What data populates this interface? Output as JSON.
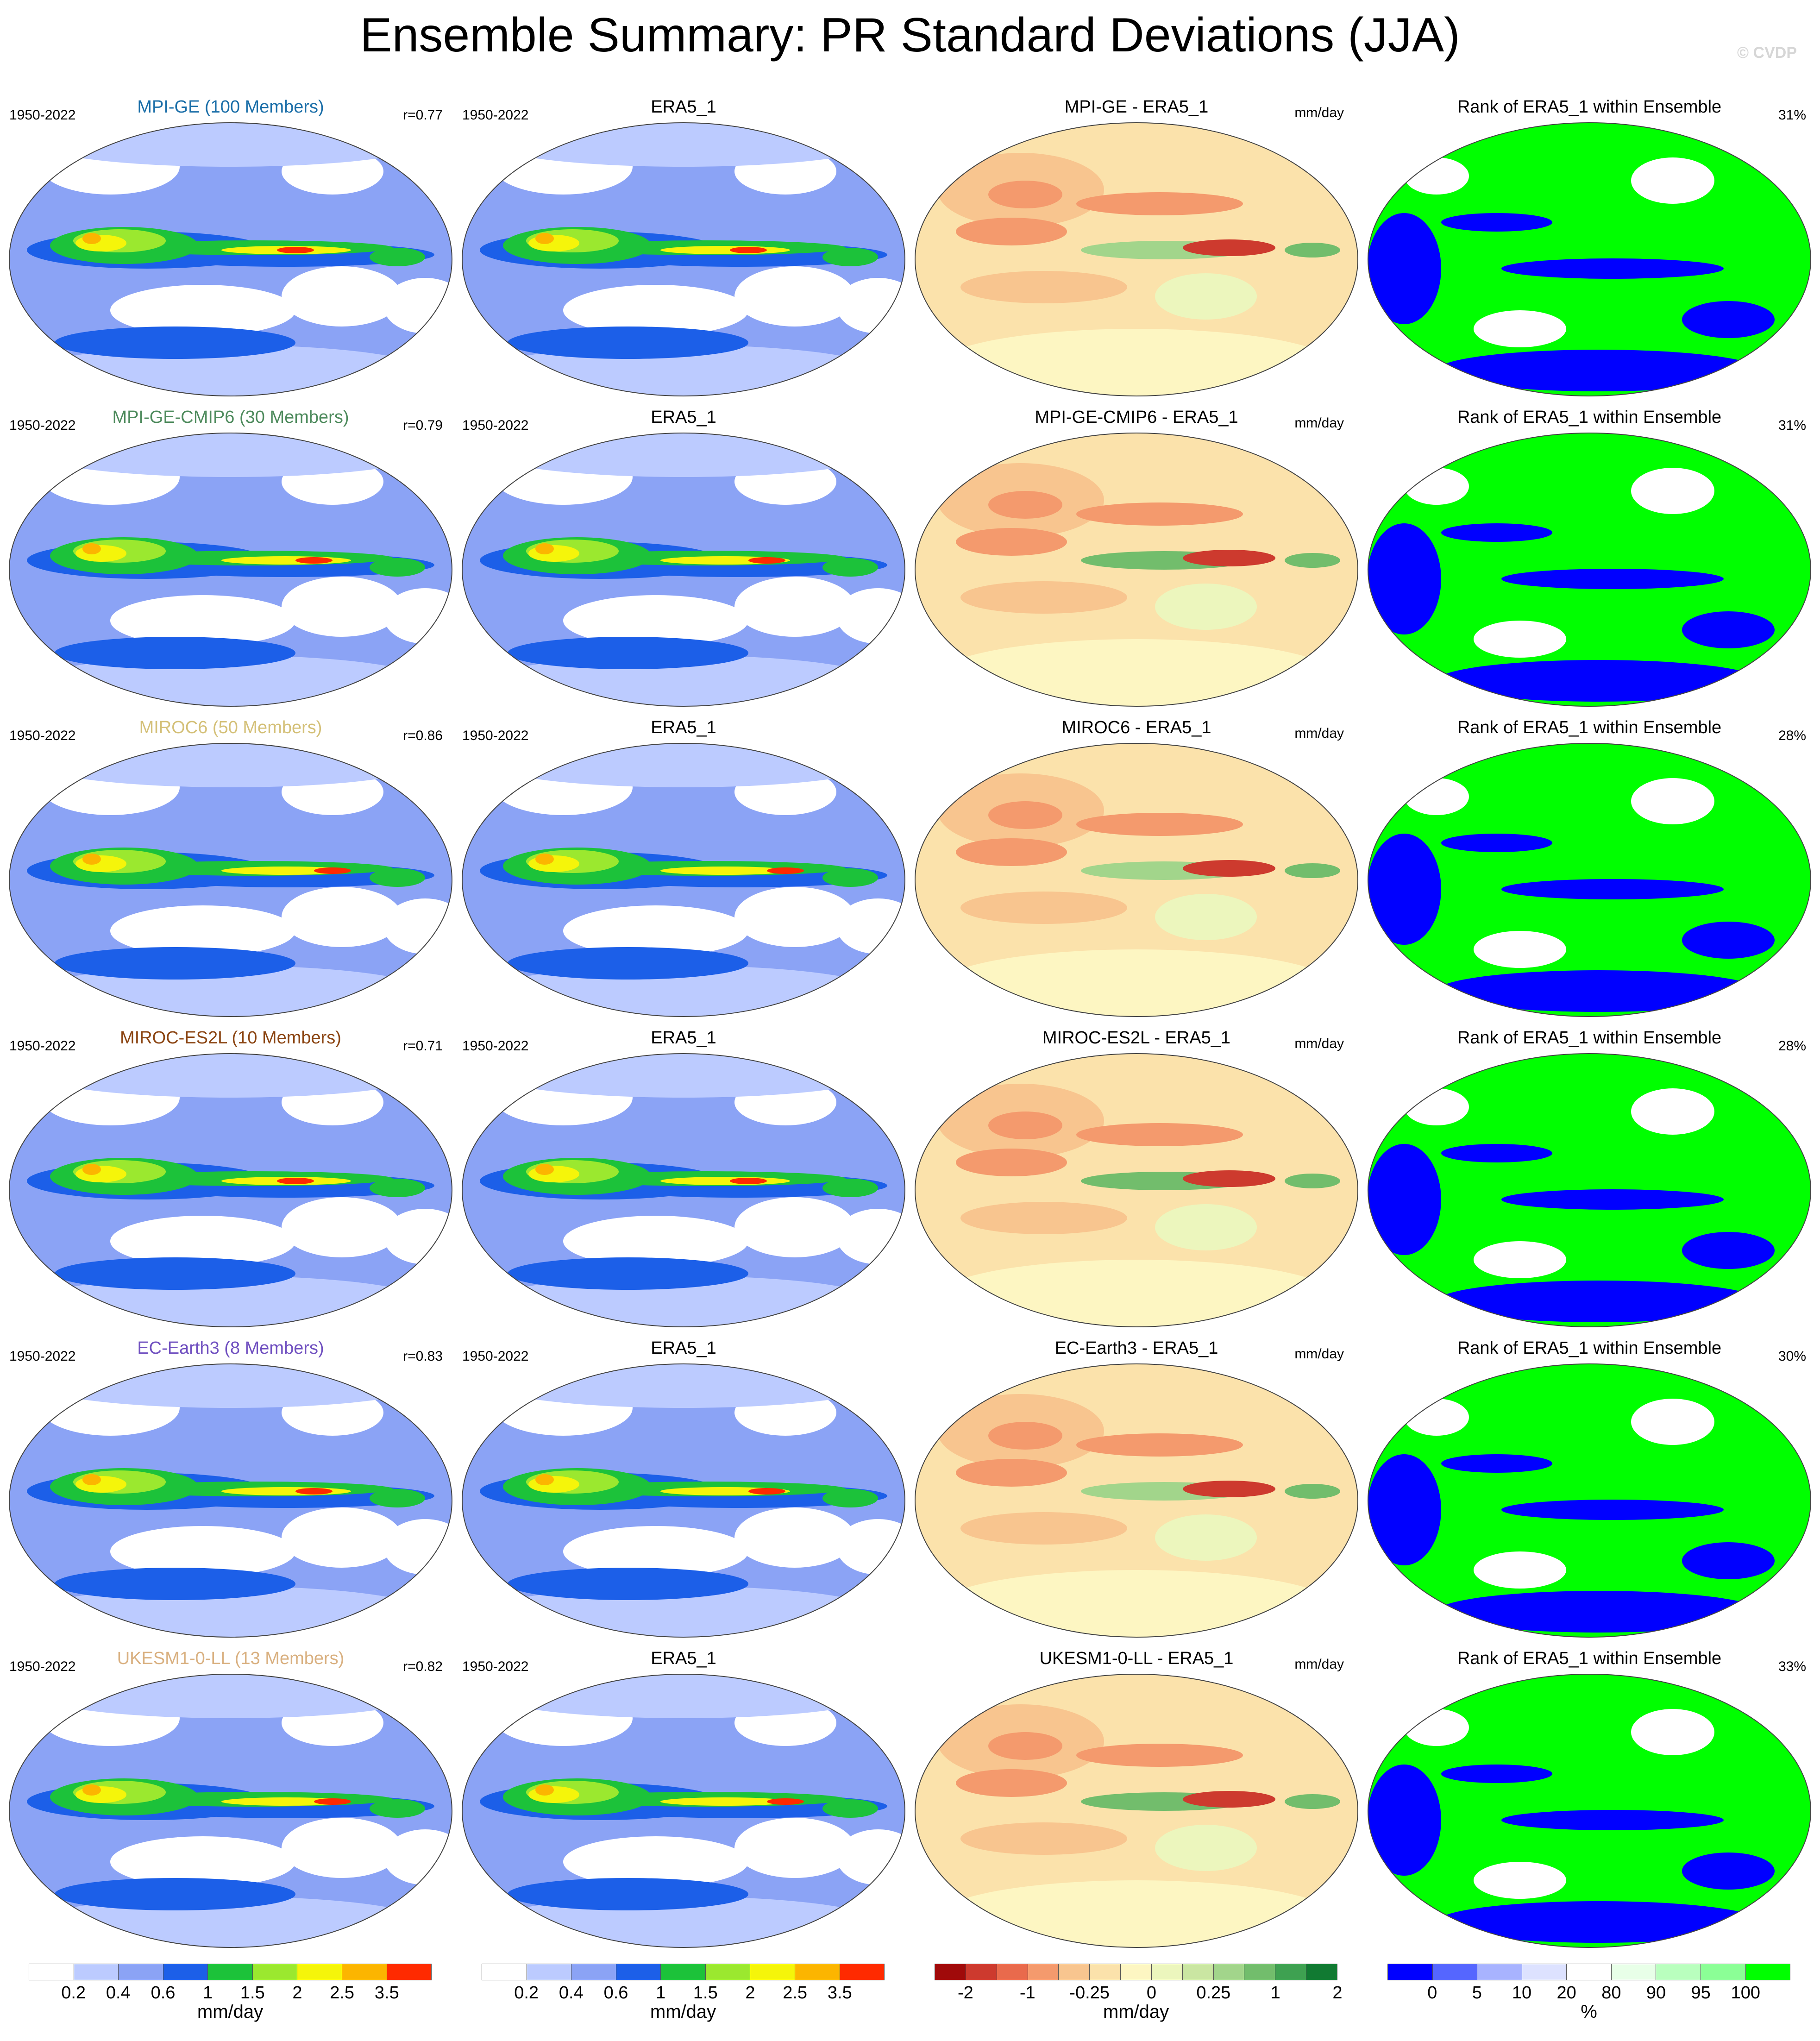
{
  "title": "Ensemble Summary: PR Standard Deviations (JJA)",
  "copyright": "© CVDP",
  "colors": {
    "std_scale": [
      "#ffffff",
      "#bccbff",
      "#8ba3f5",
      "#1c5fe8",
      "#1cc23a",
      "#9be82f",
      "#f5f50a",
      "#fcb500",
      "#ff2a00"
    ],
    "diff_scale": [
      "#a00a0a",
      "#cd3a2e",
      "#e96a4c",
      "#f49a6d",
      "#f8c58f",
      "#fbe2ab",
      "#fdf6c2",
      "#ecf6bd",
      "#cae6a2",
      "#a2d58b",
      "#72bd6c",
      "#3ea151",
      "#117a32"
    ],
    "rank_scale": [
      "#0000ff",
      "#5566ff",
      "#a8b3ff",
      "#dde2ff",
      "#ffffff",
      "#e8ffe8",
      "#b9ffbe",
      "#8bff96",
      "#00ff00"
    ],
    "model_label_colors": [
      "#1a6ea8",
      "#4d8a5c",
      "#d4c078",
      "#8b4513",
      "#7050c0",
      "#d9b080"
    ]
  },
  "rows": [
    {
      "model_label": "MPI-GE (100 Members)",
      "years": "1950-2022",
      "r": "r=0.77",
      "obs_label": "ERA5_1",
      "obs_years": "1950-2022",
      "diff_label": "MPI-GE - ERA5_1",
      "diff_unit": "mm/day",
      "rank_label": "Rank of ERA5_1 within Ensemble",
      "rank_pct": "31%"
    },
    {
      "model_label": "MPI-GE-CMIP6 (30 Members)",
      "years": "1950-2022",
      "r": "r=0.79",
      "obs_label": "ERA5_1",
      "obs_years": "1950-2022",
      "diff_label": "MPI-GE-CMIP6 - ERA5_1",
      "diff_unit": "mm/day",
      "rank_label": "Rank of ERA5_1 within Ensemble",
      "rank_pct": "31%"
    },
    {
      "model_label": "MIROC6 (50 Members)",
      "years": "1950-2022",
      "r": "r=0.86",
      "obs_label": "ERA5_1",
      "obs_years": "1950-2022",
      "diff_label": "MIROC6 - ERA5_1",
      "diff_unit": "mm/day",
      "rank_label": "Rank of ERA5_1 within Ensemble",
      "rank_pct": "28%"
    },
    {
      "model_label": "MIROC-ES2L (10 Members)",
      "years": "1950-2022",
      "r": "r=0.71",
      "obs_label": "ERA5_1",
      "obs_years": "1950-2022",
      "diff_label": "MIROC-ES2L - ERA5_1",
      "diff_unit": "mm/day",
      "rank_label": "Rank of ERA5_1 within Ensemble",
      "rank_pct": "28%"
    },
    {
      "model_label": "EC-Earth3 (8 Members)",
      "years": "1950-2022",
      "r": "r=0.83",
      "obs_label": "ERA5_1",
      "obs_years": "1950-2022",
      "diff_label": "EC-Earth3 - ERA5_1",
      "diff_unit": "mm/day",
      "rank_label": "Rank of ERA5_1 within Ensemble",
      "rank_pct": "30%"
    },
    {
      "model_label": "UKESM1-0-LL (13 Members)",
      "years": "1950-2022",
      "r": "r=0.82",
      "obs_label": "ERA5_1",
      "obs_years": "1950-2022",
      "diff_label": "UKESM1-0-LL - ERA5_1",
      "diff_unit": "mm/day",
      "rank_label": "Rank of ERA5_1 within Ensemble",
      "rank_pct": "33%"
    }
  ],
  "colorbars": [
    {
      "unit": "mm/day",
      "ticks": [
        "0.2",
        "0.4",
        "0.6",
        "1",
        "1.5",
        "2",
        "2.5",
        "3.5"
      ]
    },
    {
      "unit": "mm/day",
      "ticks": [
        "0.2",
        "0.4",
        "0.6",
        "1",
        "1.5",
        "2",
        "2.5",
        "3.5"
      ]
    },
    {
      "unit": "mm/day",
      "ticks": [
        "-2",
        "-1",
        "-0.25",
        "0",
        "0.25",
        "1",
        "2"
      ]
    },
    {
      "unit": "%",
      "ticks": [
        "0",
        "5",
        "10",
        "20",
        "80",
        "90",
        "95",
        "100"
      ]
    }
  ],
  "chart_data": {
    "type": "heatmap",
    "title": "Ensemble Summary: PR Standard Deviations (JJA)",
    "panels_per_row": [
      "model ensemble mean standard deviation",
      "ERA5_1 standard deviation",
      "model minus ERA5_1 difference",
      "rank of ERA5_1 within ensemble"
    ],
    "rows": [
      "MPI-GE (100 Members)",
      "MPI-GE-CMIP6 (30 Members)",
      "MIROC6 (50 Members)",
      "MIROC-ES2L (10 Members)",
      "EC-Earth3 (8 Members)",
      "UKESM1-0-LL (13 Members)"
    ],
    "pattern_correlation": [
      0.77,
      0.79,
      0.86,
      0.71,
      0.83,
      0.82
    ],
    "rank_percent": [
      31,
      31,
      28,
      28,
      30,
      33
    ],
    "std_levels_mm_per_day": [
      0.2,
      0.4,
      0.6,
      1,
      1.5,
      2,
      2.5,
      3.5
    ],
    "diff_levels_mm_per_day": [
      -2,
      -1,
      -0.25,
      0,
      0.25,
      1,
      2
    ],
    "rank_levels_percent": [
      0,
      5,
      10,
      20,
      80,
      90,
      95,
      100
    ],
    "period": "1950-2022"
  }
}
